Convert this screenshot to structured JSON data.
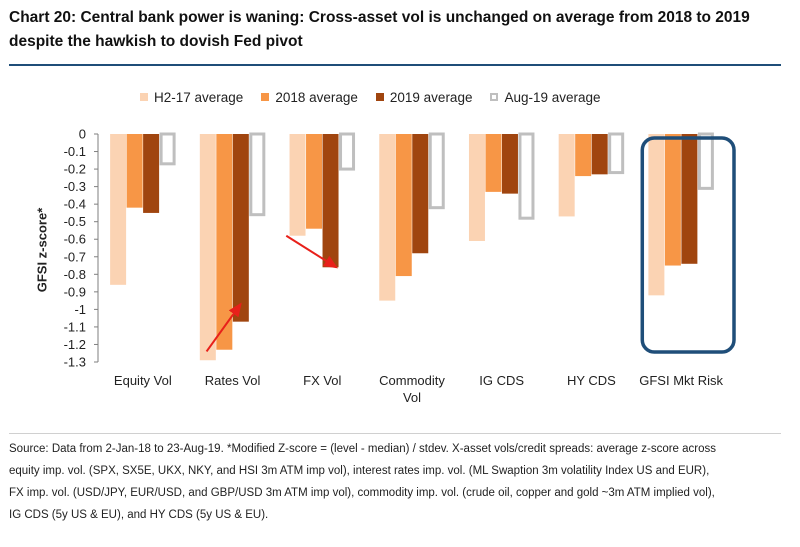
{
  "title": "Chart 20: Central bank power is waning: Cross-asset vol is unchanged on average from 2018 to 2019 despite the hawkish to dovish Fed pivot",
  "colors": {
    "H2-17 average": "#fbd3b3",
    "2018 average": "#f79646",
    "2019 average": "#a0450f",
    "Aug-19 average": "#bfbfbf",
    "highlight_box": "#1f4e79",
    "arrow": "#e8201a"
  },
  "chart_data": {
    "type": "bar",
    "ylabel": "GFSI z-score*",
    "xlabel": "",
    "ylim": [
      -1.3,
      0
    ],
    "yticks": [
      "0",
      "-0.1",
      "-0.2",
      "-0.3",
      "-0.4",
      "-0.5",
      "-0.6",
      "-0.7",
      "-0.8",
      "-0.9",
      "-1",
      "-1.1",
      "-1.2",
      "-1.3"
    ],
    "categories": [
      "Equity Vol",
      "Rates Vol",
      "FX Vol",
      "Commodity Vol",
      "IG CDS",
      "HY CDS",
      "GFSI Mkt Risk"
    ],
    "category_lines": [
      [
        "Equity Vol"
      ],
      [
        "Rates Vol"
      ],
      [
        "FX Vol"
      ],
      [
        "Commodity",
        "Vol"
      ],
      [
        "IG CDS"
      ],
      [
        "HY CDS"
      ],
      [
        "GFSI Mkt Risk"
      ]
    ],
    "series": [
      {
        "name": "H2-17 average",
        "style": "solid",
        "values": [
          -0.86,
          -1.29,
          -0.58,
          -0.95,
          -0.61,
          -0.47,
          -0.92
        ]
      },
      {
        "name": "2018 average",
        "style": "solid",
        "values": [
          -0.42,
          -1.23,
          -0.54,
          -0.81,
          -0.33,
          -0.24,
          -0.75
        ]
      },
      {
        "name": "2019 average",
        "style": "solid",
        "values": [
          -0.45,
          -1.07,
          -0.76,
          -0.68,
          -0.34,
          -0.23,
          -0.74
        ]
      },
      {
        "name": "Aug-19 average",
        "style": "hollow",
        "values": [
          -0.17,
          -0.46,
          -0.2,
          -0.42,
          -0.48,
          -0.22,
          -0.31
        ]
      }
    ],
    "highlight": "GFSI Mkt Risk",
    "arrows": [
      {
        "category": "Rates Vol",
        "from_value": -1.24,
        "to_value": -0.97
      },
      {
        "category": "FX Vol",
        "from_value": -0.58,
        "to_value": -0.76
      }
    ],
    "legend_position": "top"
  },
  "source_lines": [
    "Source: Data from 2-Jan-18 to 23-Aug-19. *Modified Z-score = (level - median) / stdev. X-asset vols/credit spreads: average z-score across",
    "equity imp. vol. (SPX, SX5E, UKX, NKY, and HSI 3m ATM imp vol), interest rates imp. vol. (ML Swaption 3m volatility Index US and EUR),",
    "FX imp. vol. (USD/JPY, EUR/USD, and GBP/USD 3m ATM imp vol), commodity imp. vol. (crude oil, copper and gold ~3m ATM implied vol),",
    "IG CDS (5y US & EU), and HY CDS (5y US & EU)."
  ]
}
